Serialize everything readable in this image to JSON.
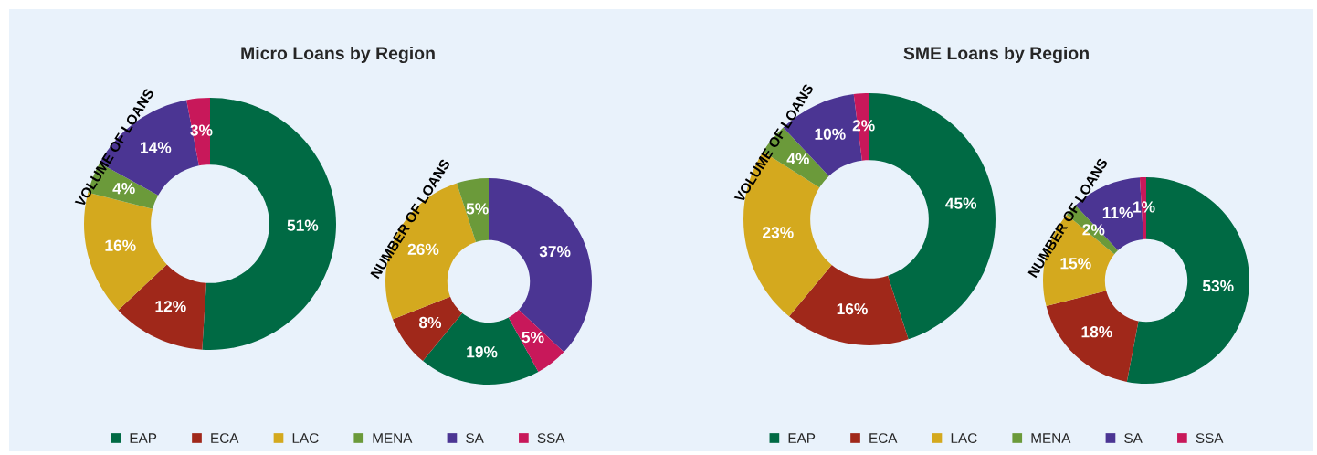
{
  "chart_data": [
    {
      "type": "donut",
      "title": "Micro Loans by Region",
      "categories": [
        "EAP",
        "ECA",
        "LAC",
        "MENA",
        "SA",
        "SSA"
      ],
      "colors": [
        "#006a44",
        "#a0281a",
        "#d4a91e",
        "#6b9a3a",
        "#4b3593",
        "#c8185a"
      ],
      "legend": "bottom",
      "series": [
        {
          "name": "VOLUME OF LOANS",
          "values": [
            51,
            12,
            16,
            4,
            14,
            3
          ],
          "value_labels": [
            "51%",
            "12%",
            "16%",
            "4%",
            "14%",
            "3%"
          ]
        },
        {
          "name": "NUMBER OF LOANS",
          "values": [
            19,
            8,
            26,
            5,
            37,
            5
          ],
          "value_labels": [
            "19%",
            "8%",
            "26%",
            "5%",
            "37%",
            "5%"
          ]
        }
      ]
    },
    {
      "type": "donut",
      "title": "SME Loans by Region",
      "categories": [
        "EAP",
        "ECA",
        "LAC",
        "MENA",
        "SA",
        "SSA"
      ],
      "colors": [
        "#006a44",
        "#a0281a",
        "#d4a91e",
        "#6b9a3a",
        "#4b3593",
        "#c8185a"
      ],
      "legend": "bottom",
      "series": [
        {
          "name": "VOLUME OF LOANS",
          "values": [
            45,
            16,
            23,
            4,
            10,
            2
          ],
          "value_labels": [
            "45%",
            "16%",
            "23%",
            "4%",
            "10%",
            "2%"
          ]
        },
        {
          "name": "NUMBER OF LOANS",
          "values": [
            53,
            18,
            15,
            2,
            11,
            1
          ],
          "value_labels": [
            "53%",
            "18%",
            "15%",
            "2%",
            "11%",
            "1%"
          ]
        }
      ]
    }
  ]
}
